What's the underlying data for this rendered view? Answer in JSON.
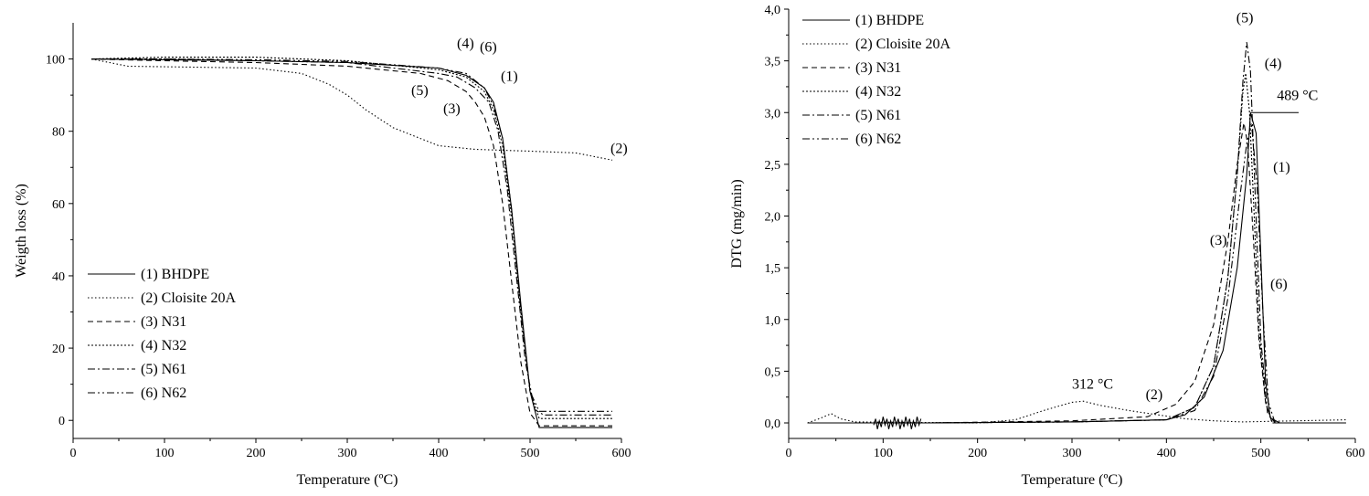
{
  "chart_data": [
    {
      "type": "line",
      "xlabel": "Temperature (ºC)",
      "ylabel": "Weigth loss (%)",
      "xlim": [
        0,
        600
      ],
      "ylim": [
        -5,
        110
      ],
      "x_ticks": [
        0,
        100,
        200,
        300,
        400,
        500,
        600
      ],
      "y_ticks": [
        0,
        20,
        40,
        60,
        80,
        100
      ],
      "legend_position": "bottom-left",
      "grid": false,
      "series": [
        {
          "name": "(1) BHDPE",
          "dash": "",
          "points": [
            [
              20,
              100
            ],
            [
              100,
              99.8
            ],
            [
              200,
              99.5
            ],
            [
              300,
              99
            ],
            [
              400,
              97.5
            ],
            [
              430,
              95.5
            ],
            [
              450,
              92
            ],
            [
              460,
              88
            ],
            [
              470,
              78
            ],
            [
              480,
              58
            ],
            [
              490,
              32
            ],
            [
              500,
              8
            ],
            [
              510,
              -2
            ],
            [
              550,
              -2
            ],
            [
              590,
              -2
            ]
          ]
        },
        {
          "name": "(2) Cloisite 20A",
          "dash": "1.5,2.5",
          "points": [
            [
              20,
              100
            ],
            [
              40,
              99
            ],
            [
              60,
              98
            ],
            [
              200,
              97.5
            ],
            [
              250,
              96
            ],
            [
              280,
              93
            ],
            [
              300,
              90
            ],
            [
              320,
              86
            ],
            [
              350,
              81
            ],
            [
              380,
              78
            ],
            [
              400,
              76
            ],
            [
              440,
              75
            ],
            [
              500,
              74.5
            ],
            [
              550,
              74
            ],
            [
              590,
              72
            ]
          ]
        },
        {
          "name": "(3) N31",
          "dash": "6,4",
          "points": [
            [
              20,
              100
            ],
            [
              100,
              99.5
            ],
            [
              200,
              99
            ],
            [
              300,
              98
            ],
            [
              380,
              96
            ],
            [
              410,
              94
            ],
            [
              430,
              91
            ],
            [
              440,
              88
            ],
            [
              450,
              84
            ],
            [
              460,
              76
            ],
            [
              470,
              60
            ],
            [
              480,
              38
            ],
            [
              490,
              16
            ],
            [
              500,
              2
            ],
            [
              510,
              -1.5
            ],
            [
              590,
              -1.5
            ]
          ]
        },
        {
          "name": "(4) N32",
          "dash": "2,2",
          "points": [
            [
              20,
              100
            ],
            [
              100,
              100.5
            ],
            [
              200,
              100.5
            ],
            [
              300,
              99.5
            ],
            [
              400,
              97
            ],
            [
              430,
              95
            ],
            [
              450,
              91
            ],
            [
              460,
              86
            ],
            [
              470,
              76
            ],
            [
              480,
              56
            ],
            [
              490,
              30
            ],
            [
              500,
              8
            ],
            [
              510,
              0.5
            ],
            [
              590,
              0.5
            ]
          ]
        },
        {
          "name": "(5) N61",
          "dash": "8,3,2,3",
          "points": [
            [
              20,
              100
            ],
            [
              100,
              100
            ],
            [
              200,
              99.5
            ],
            [
              300,
              99
            ],
            [
              400,
              96
            ],
            [
              420,
              95
            ],
            [
              440,
              92
            ],
            [
              455,
              88
            ],
            [
              465,
              80
            ],
            [
              475,
              64
            ],
            [
              485,
              40
            ],
            [
              495,
              16
            ],
            [
              505,
              3
            ],
            [
              515,
              1.5
            ],
            [
              590,
              1.5
            ]
          ]
        },
        {
          "name": "(6) N62",
          "dash": "8,3,2,3,2,3",
          "points": [
            [
              20,
              100
            ],
            [
              100,
              100
            ],
            [
              200,
              99.8
            ],
            [
              300,
              99.3
            ],
            [
              400,
              97.5
            ],
            [
              430,
              96
            ],
            [
              450,
              92
            ],
            [
              460,
              87
            ],
            [
              470,
              78
            ],
            [
              480,
              58
            ],
            [
              490,
              30
            ],
            [
              500,
              8
            ],
            [
              510,
              2.5
            ],
            [
              590,
              2.5
            ]
          ]
        }
      ],
      "annotations": [
        {
          "text": "(4)",
          "x": 420,
          "y": 103
        },
        {
          "text": "(6)",
          "x": 445,
          "y": 102
        },
        {
          "text": "(1)",
          "x": 468,
          "y": 94
        },
        {
          "text": "(5)",
          "x": 370,
          "y": 90
        },
        {
          "text": "(3)",
          "x": 405,
          "y": 85
        },
        {
          "text": "(2)",
          "x": 588,
          "y": 74
        }
      ]
    },
    {
      "type": "line",
      "xlabel": "Temperature (ºC)",
      "ylabel": "DTG (mg/min)",
      "xlim": [
        0,
        600
      ],
      "ylim": [
        -0.15,
        4.0
      ],
      "x_ticks": [
        0,
        100,
        200,
        300,
        400,
        500,
        600
      ],
      "y_ticks": [
        "0,0",
        "0,5",
        "1,0",
        "1,5",
        "2,0",
        "2,5",
        "3,0",
        "3,5",
        "4,0"
      ],
      "y_tick_values": [
        0,
        0.5,
        1.0,
        1.5,
        2.0,
        2.5,
        3.0,
        3.5,
        4.0
      ],
      "legend_position": "top-left",
      "grid": false,
      "series": [
        {
          "name": "(1) BHDPE",
          "dash": "",
          "points": [
            [
              20,
              0
            ],
            [
              150,
              0
            ],
            [
              300,
              0.01
            ],
            [
              400,
              0.03
            ],
            [
              420,
              0.08
            ],
            [
              440,
              0.25
            ],
            [
              460,
              0.7
            ],
            [
              475,
              1.5
            ],
            [
              485,
              2.4
            ],
            [
              489,
              3.0
            ],
            [
              495,
              2.8
            ],
            [
              500,
              1.6
            ],
            [
              505,
              0.4
            ],
            [
              510,
              0.05
            ],
            [
              520,
              0
            ],
            [
              590,
              0
            ]
          ]
        },
        {
          "name": "(2) Cloisite 20A",
          "dash": "1.5,2.5",
          "points": [
            [
              20,
              0
            ],
            [
              35,
              0.05
            ],
            [
              45,
              0.09
            ],
            [
              55,
              0.04
            ],
            [
              70,
              0.01
            ],
            [
              200,
              0
            ],
            [
              240,
              0.03
            ],
            [
              270,
              0.12
            ],
            [
              300,
              0.2
            ],
            [
              312,
              0.21
            ],
            [
              330,
              0.17
            ],
            [
              360,
              0.12
            ],
            [
              390,
              0.08
            ],
            [
              420,
              0.04
            ],
            [
              450,
              0.02
            ],
            [
              480,
              0.01
            ],
            [
              590,
              0.03
            ]
          ]
        },
        {
          "name": "(3) N31",
          "dash": "6,4",
          "points": [
            [
              20,
              0
            ],
            [
              150,
              0
            ],
            [
              300,
              0.02
            ],
            [
              380,
              0.06
            ],
            [
              410,
              0.18
            ],
            [
              430,
              0.4
            ],
            [
              450,
              0.95
            ],
            [
              465,
              1.75
            ],
            [
              475,
              2.5
            ],
            [
              482,
              2.9
            ],
            [
              486,
              2.7
            ],
            [
              492,
              1.8
            ],
            [
              498,
              0.8
            ],
            [
              505,
              0.2
            ],
            [
              512,
              0
            ],
            [
              590,
              0
            ]
          ]
        },
        {
          "name": "(4) N32",
          "dash": "2,2",
          "points": [
            [
              20,
              0
            ],
            [
              150,
              0
            ],
            [
              300,
              0.01
            ],
            [
              400,
              0.03
            ],
            [
              430,
              0.15
            ],
            [
              450,
              0.55
            ],
            [
              465,
              1.4
            ],
            [
              475,
              2.4
            ],
            [
              481,
              3.2
            ],
            [
              484,
              3.38
            ],
            [
              488,
              3.0
            ],
            [
              493,
              2.0
            ],
            [
              498,
              0.9
            ],
            [
              505,
              0.2
            ],
            [
              512,
              0
            ],
            [
              590,
              0
            ]
          ]
        },
        {
          "name": "(5) N61",
          "dash": "8,3,2,3",
          "points": [
            [
              20,
              0
            ],
            [
              150,
              0
            ],
            [
              300,
              0.01
            ],
            [
              400,
              0.03
            ],
            [
              430,
              0.15
            ],
            [
              450,
              0.55
            ],
            [
              465,
              1.4
            ],
            [
              475,
              2.4
            ],
            [
              481,
              3.3
            ],
            [
              485,
              3.68
            ],
            [
              489,
              3.4
            ],
            [
              494,
              2.2
            ],
            [
              500,
              0.8
            ],
            [
              507,
              0.1
            ],
            [
              515,
              0
            ],
            [
              590,
              0
            ]
          ]
        },
        {
          "name": "(6) N62",
          "dash": "8,3,2,3,2,3",
          "points": [
            [
              20,
              0
            ],
            [
              150,
              0
            ],
            [
              300,
              0.01
            ],
            [
              400,
              0.03
            ],
            [
              430,
              0.12
            ],
            [
              450,
              0.45
            ],
            [
              465,
              1.2
            ],
            [
              478,
              2.2
            ],
            [
              485,
              2.7
            ],
            [
              490,
              2.9
            ],
            [
              496,
              2.3
            ],
            [
              502,
              1.1
            ],
            [
              508,
              0.2
            ],
            [
              515,
              0
            ],
            [
              590,
              0
            ]
          ]
        }
      ],
      "noise_region": [
        90,
        140
      ],
      "peak_line": {
        "x1": 489,
        "x2": 540,
        "y": 3.0
      },
      "annotations": [
        {
          "text": "(5)",
          "x": 474,
          "y": 3.87
        },
        {
          "text": "(4)",
          "x": 504,
          "y": 3.43
        },
        {
          "text": "489 °C",
          "x": 517,
          "y": 3.12
        },
        {
          "text": "(1)",
          "x": 513,
          "y": 2.43
        },
        {
          "text": "(3)",
          "x": 446,
          "y": 1.72
        },
        {
          "text": "(6)",
          "x": 510,
          "y": 1.3
        },
        {
          "text": "312 °C",
          "x": 300,
          "y": 0.33
        },
        {
          "text": "(2)",
          "x": 378,
          "y": 0.23
        }
      ]
    }
  ]
}
